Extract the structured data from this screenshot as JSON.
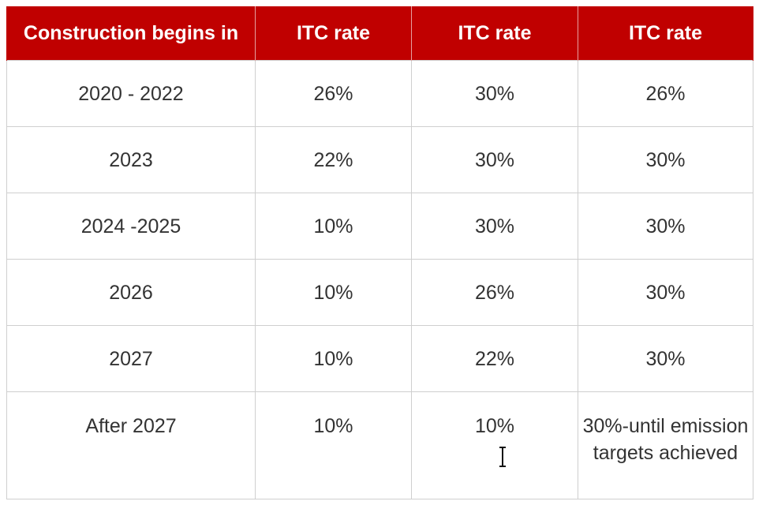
{
  "table": {
    "headers": [
      "Construction begins in",
      "ITC rate",
      "ITC rate",
      "ITC rate"
    ],
    "rows": [
      [
        "2020 - 2022",
        "26%",
        "30%",
        "26%"
      ],
      [
        "2023",
        "22%",
        "30%",
        "30%"
      ],
      [
        "2024 -2025",
        "10%",
        "30%",
        "30%"
      ],
      [
        "2026",
        "10%",
        "26%",
        "30%"
      ],
      [
        "2027",
        "10%",
        "22%",
        "30%"
      ],
      [
        "After 2027",
        "10%",
        "10%",
        "30%-until emission targets achieved"
      ]
    ]
  },
  "colors": {
    "header_bg": "#c00000",
    "header_text": "#ffffff",
    "cell_text": "#333333",
    "grid": "#cfcfcf"
  },
  "icons": {
    "cursor": "text-cursor-icon"
  }
}
